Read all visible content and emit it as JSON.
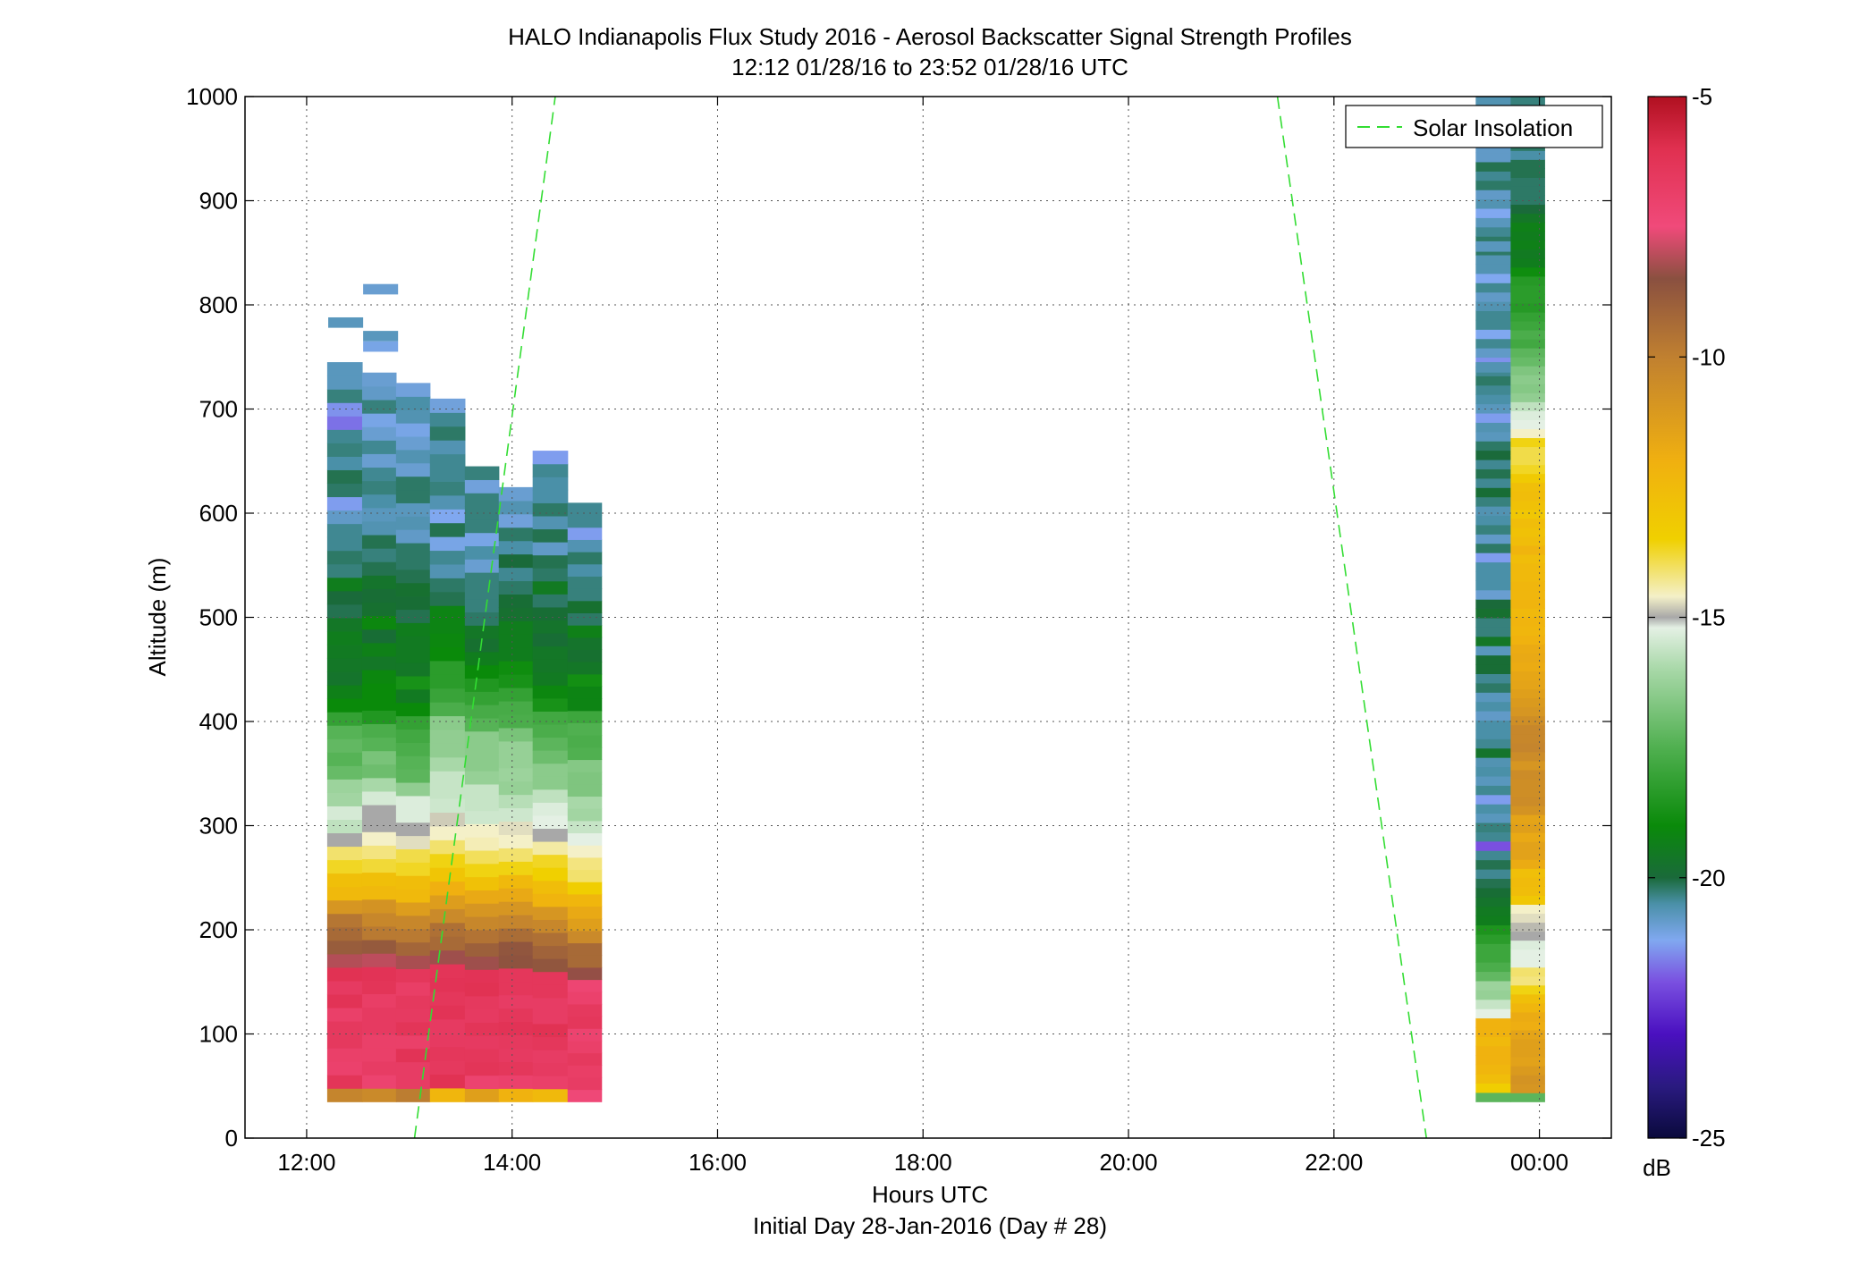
{
  "chart_data": {
    "type": "heatmap",
    "title": "HALO Indianapolis Flux Study 2016 - Aerosol Backscatter Signal Strength Profiles",
    "subtitle": "12:12 01/28/16 to 23:52 01/28/16  UTC",
    "xlabel": "Hours UTC",
    "xlabel2": "Initial Day 28-Jan-2016 (Day # 28)",
    "ylabel": "Altitude (m)",
    "xlim": [
      11.4,
      24.7
    ],
    "ylim": [
      0,
      1000
    ],
    "x_ticks": [
      12,
      14,
      16,
      18,
      20,
      22,
      24
    ],
    "x_tick_labels": [
      "12:00",
      "14:00",
      "16:00",
      "18:00",
      "20:00",
      "22:00",
      "00:00"
    ],
    "y_ticks": [
      0,
      100,
      200,
      300,
      400,
      500,
      600,
      700,
      800,
      900,
      1000
    ],
    "y_tick_labels": [
      "0",
      "100",
      "200",
      "300",
      "400",
      "500",
      "600",
      "700",
      "800",
      "900",
      "1000"
    ],
    "grid": true,
    "legend": {
      "placement": "top-right",
      "entries": [
        {
          "label": "Solar Insolation",
          "color": "#33dd33",
          "style": "dashed"
        }
      ]
    },
    "colorbar": {
      "range": [
        -25,
        -5
      ],
      "ticks": [
        -5,
        -10,
        -15,
        -20,
        -25
      ],
      "tick_labels": [
        "-5",
        "-10",
        "-15",
        "-20",
        "-25"
      ],
      "unit": "dB",
      "stops": [
        {
          "value": -25,
          "color": "#0a0a3c"
        },
        {
          "value": -24,
          "color": "#2a1a80"
        },
        {
          "value": -23,
          "color": "#4a10c0"
        },
        {
          "value": -22,
          "color": "#7a50e0"
        },
        {
          "value": -21.2,
          "color": "#80a8f0"
        },
        {
          "value": -20.5,
          "color": "#4a90a8"
        },
        {
          "value": -20,
          "color": "#1a6a3a"
        },
        {
          "value": -19,
          "color": "#0a8a0a"
        },
        {
          "value": -17.5,
          "color": "#50b050"
        },
        {
          "value": -16,
          "color": "#a8d8a8"
        },
        {
          "value": -15.2,
          "color": "#e4f0e4"
        },
        {
          "value": -15,
          "color": "#a8a8a8"
        },
        {
          "value": -14.6,
          "color": "#f4f0c8"
        },
        {
          "value": -13.5,
          "color": "#f0d000"
        },
        {
          "value": -12,
          "color": "#f0b010"
        },
        {
          "value": -10,
          "color": "#c08030"
        },
        {
          "value": -8.5,
          "color": "#8a5040"
        },
        {
          "value": -7.5,
          "color": "#f04a7a"
        },
        {
          "value": -6,
          "color": "#e03050"
        },
        {
          "value": -5,
          "color": "#b01020"
        }
      ]
    },
    "solar_insolation_lines": [
      {
        "x": [
          13.05,
          14.42
        ],
        "y": [
          0,
          1000
        ]
      },
      {
        "x": [
          21.45,
          22.9
        ],
        "y": [
          1000,
          0
        ]
      }
    ],
    "profiles": [
      {
        "t0": 12.2,
        "t1": 12.54,
        "bottom": 35,
        "top": 745,
        "values": [
          -10.2,
          -6.3,
          -7,
          -6.9,
          -6.5,
          -6.5,
          -6.9,
          -6.2,
          -6.6,
          -6.1,
          -8.1,
          -8.9,
          -9.3,
          -9.7,
          -10.9,
          -12.4,
          -12.7,
          -13.7,
          -14.1,
          -15,
          -15.7,
          -15.4,
          -16.1,
          -16.2,
          -17.1,
          -17.4,
          -17.2,
          -17.4,
          -18.1,
          -19,
          -19.3,
          -19.7,
          -19.6,
          -19.5,
          -19.4,
          -19.6,
          -20.1,
          -20,
          -19.4,
          -20.3,
          -20.2,
          -20.4,
          -20.4,
          -20.8,
          -21.3,
          -20.2,
          -20.1,
          -20.5,
          -20.3,
          -20.4,
          -21.7,
          -21.4,
          -20.3,
          -20.7,
          -20.7
        ]
      },
      {
        "t0": 12.54,
        "t1": 12.87,
        "bottom": 35,
        "top": 735,
        "values": [
          -10.4,
          -7.1,
          -6.7,
          -6.9,
          -6.9,
          -6.6,
          -6.6,
          -6.8,
          -6.3,
          -6.2,
          -8,
          -8.8,
          -9.8,
          -10.3,
          -10.8,
          -12.4,
          -12.7,
          -13.8,
          -14.2,
          -14.6,
          -15,
          -15,
          -15.4,
          -16,
          -17,
          -16.8,
          -17.4,
          -17.6,
          -18.5,
          -19,
          -19,
          -19.1,
          -19.6,
          -19.3,
          -19.9,
          -19.1,
          -19.8,
          -19.9,
          -19.7,
          -20.1,
          -20.3,
          -20.1,
          -20.6,
          -20.7,
          -20.5,
          -20.3,
          -20.4,
          -20.9,
          -20.4,
          -20.9,
          -21.1,
          -20.3,
          -20.8,
          -20.9
        ]
      },
      {
        "t0": 12.87,
        "t1": 13.2,
        "bottom": 35,
        "top": 725,
        "values": [
          -9.9,
          -6.7,
          -6.7,
          -6.2,
          -6.9,
          -6.3,
          -6.6,
          -6.5,
          -6.8,
          -6.4,
          -8.2,
          -9.2,
          -9.8,
          -10.3,
          -11.2,
          -12.4,
          -12.6,
          -13.7,
          -13.9,
          -14.7,
          -15,
          -15.3,
          -15.3,
          -16.4,
          -17.3,
          -17.4,
          -17.6,
          -17.8,
          -18.1,
          -19,
          -19.5,
          -18.7,
          -19.6,
          -19.5,
          -19.5,
          -19.4,
          -20.1,
          -19.9,
          -19.8,
          -20.1,
          -20.2,
          -20.2,
          -20.8,
          -20.6,
          -20.7,
          -20.2,
          -20.2,
          -20.9,
          -20.6,
          -20.9,
          -21.1,
          -20.6,
          -20.5,
          -21
        ]
      },
      {
        "t0": 13.2,
        "t1": 13.54,
        "bottom": 35,
        "top": 710,
        "values": [
          -12.3,
          -6.1,
          -6.5,
          -6.4,
          -6.6,
          -6.6,
          -6.2,
          -6.4,
          -6.2,
          -6.3,
          -8.3,
          -9.3,
          -9.5,
          -10.4,
          -11.2,
          -12,
          -13,
          -13.6,
          -14.1,
          -14.6,
          -14.8,
          -15.5,
          -15.6,
          -15.6,
          -16,
          -16.4,
          -16.4,
          -16.5,
          -17.6,
          -18,
          -18.3,
          -18.3,
          -19,
          -19.1,
          -19.2,
          -19.2,
          -20.1,
          -20.2,
          -20.6,
          -20.4,
          -21.1,
          -20.1,
          -21.2,
          -20.6,
          -20.3,
          -20.4,
          -20.4,
          -20.6,
          -20.2,
          -20.4,
          -21
        ]
      },
      {
        "t0": 13.54,
        "t1": 13.87,
        "bottom": 35,
        "top": 645,
        "values": [
          -11.3,
          -7.1,
          -6.3,
          -6.4,
          -6.6,
          -6.3,
          -6.6,
          -6.5,
          -6.1,
          -6.2,
          -8.3,
          -9,
          -9.6,
          -10.3,
          -10.9,
          -11.7,
          -12.8,
          -13.6,
          -14,
          -14.5,
          -14.6,
          -15.5,
          -15.6,
          -15.6,
          -16.3,
          -16.5,
          -16.5,
          -16.5,
          -17.4,
          -17.7,
          -18.1,
          -18.5,
          -19,
          -19.4,
          -19.8,
          -19.6,
          -20.2,
          -20.3,
          -20.3,
          -20.3,
          -20.9,
          -20.5,
          -21.1,
          -20.3,
          -20.3,
          -20.3,
          -21,
          -20.3
        ]
      },
      {
        "t0": 13.87,
        "t1": 14.2,
        "bottom": 35,
        "top": 625,
        "values": [
          -12.1,
          -7,
          -6.4,
          -6.6,
          -6.5,
          -6.2,
          -6.4,
          -6.7,
          -6.4,
          -6.4,
          -8.6,
          -8.7,
          -9.4,
          -10.2,
          -10.9,
          -11.7,
          -12.4,
          -13.6,
          -14.1,
          -14.6,
          -14.7,
          -15.5,
          -15.8,
          -16.3,
          -16.2,
          -16.3,
          -16.3,
          -16.8,
          -17.6,
          -17.7,
          -18.1,
          -18.7,
          -18.9,
          -19.4,
          -19.4,
          -19.4,
          -19.8,
          -19.9,
          -20.2,
          -20.4,
          -20,
          -20.5,
          -20.2,
          -21,
          -20.6,
          -20.9
        ]
      },
      {
        "t0": 14.2,
        "t1": 14.54,
        "bottom": 35,
        "top": 660,
        "values": [
          -12.4,
          -6.9,
          -6.6,
          -6.7,
          -6.4,
          -6.1,
          -6.7,
          -6.7,
          -6.4,
          -6.4,
          -8.7,
          -9.1,
          -9.5,
          -10.3,
          -10.9,
          -12.2,
          -12.6,
          -13.5,
          -13.7,
          -14.4,
          -15,
          -15.2,
          -15.3,
          -15.7,
          -16.5,
          -16.5,
          -17,
          -17.3,
          -17.6,
          -17.8,
          -18.7,
          -19.1,
          -19.5,
          -19.6,
          -19.6,
          -19.9,
          -19.7,
          -19.9,
          -20.2,
          -19.5,
          -20.2,
          -20.1,
          -20.8,
          -20.1,
          -20.6,
          -20.2,
          -20.5,
          -20.5,
          -20.4,
          -21.3
        ]
      },
      {
        "t0": 14.54,
        "t1": 14.87,
        "bottom": 35,
        "top": 610,
        "values": [
          -7.4,
          -6.7,
          -6.8,
          -6.5,
          -6.9,
          -7.1,
          -6.4,
          -6.5,
          -7,
          -7.2,
          -8.4,
          -9.3,
          -9.3,
          -10.4,
          -11.3,
          -11.7,
          -12.3,
          -13.4,
          -14.1,
          -14.2,
          -14.6,
          -15.2,
          -15.6,
          -16.1,
          -16,
          -16.7,
          -16.7,
          -16.6,
          -17.5,
          -17.6,
          -17.5,
          -17.9,
          -19.2,
          -19.2,
          -18.8,
          -19.6,
          -19.8,
          -19.7,
          -19.3,
          -20.2,
          -19.8,
          -20.3,
          -20.3,
          -20.5,
          -20.2,
          -20.6,
          -21.3,
          -20.4,
          -20.4
        ]
      },
      {
        "t0": 23.38,
        "t1": 23.72,
        "bottom": 35,
        "top": 1000,
        "values": [
          -17.3,
          -13.4,
          -12.6,
          -12.3,
          -12.1,
          -12.1,
          -12.4,
          -12.1,
          -12.1,
          -15.2,
          -15.6,
          -16.3,
          -16.2,
          -17.2,
          -17.6,
          -17.9,
          -17.9,
          -18.3,
          -18.6,
          -19.4,
          -19.5,
          -19.7,
          -19.9,
          -20.1,
          -20.4,
          -20.1,
          -20.4,
          -22,
          -20.4,
          -20.3,
          -20.7,
          -20.5,
          -21.3,
          -20.4,
          -20.7,
          -20.5,
          -20.6,
          -19.7,
          -20.4,
          -20.5,
          -20.5,
          -20.8,
          -20.5,
          -20.7,
          -20.2,
          -20.4,
          -19.9,
          -19.9,
          -20.7,
          -19.6,
          -20.3,
          -20.3,
          -19.8,
          -20,
          -20.9,
          -20.5,
          -20.5,
          -20.5,
          -21.3,
          -20.2,
          -20.8,
          -20.3,
          -20.5,
          -20.6,
          -20.3,
          -19.9,
          -20.4,
          -20.1,
          -20.4,
          -20,
          -20.2,
          -20.7,
          -20.6,
          -21.3,
          -20.7,
          -20.5,
          -20.4,
          -20.2,
          -20.4,
          -21.4,
          -20.8,
          -20.4,
          -21.2,
          -20.4,
          -20.4,
          -20.6,
          -20.8,
          -20.4,
          -21.2,
          -20.6,
          -20.6,
          -20.2,
          -20.2,
          -20.4,
          -20.7,
          -21.2,
          -20.6,
          -20.8,
          -20.2,
          -20.4,
          -20.1,
          -20.8,
          -20.8,
          -20.5,
          -20.3,
          -20.7,
          -20.9,
          -20.6
        ]
      },
      {
        "t0": 23.72,
        "t1": 24.05,
        "bottom": 35,
        "top": 1000,
        "values": [
          -17.3,
          -10.9,
          -10.8,
          -11.1,
          -11.4,
          -11.3,
          -11.3,
          -11.5,
          -11.9,
          -11.8,
          -12.3,
          -12.7,
          -13.6,
          -14.2,
          -14.1,
          -15.2,
          -15.2,
          -15.3,
          -15,
          -14.9,
          -14.7,
          -14.6,
          -13.1,
          -12.6,
          -12.5,
          -12.7,
          -11.8,
          -11.4,
          -11.4,
          -11.7,
          -11.3,
          -11.5,
          -10.8,
          -10.5,
          -10.6,
          -10.6,
          -10.5,
          -10.9,
          -10.5,
          -10.2,
          -10.3,
          -10.3,
          -10.6,
          -10.9,
          -11.1,
          -11.3,
          -11.5,
          -11.6,
          -11.8,
          -11.7,
          -11.8,
          -12.1,
          -12.3,
          -12.2,
          -12.4,
          -12.2,
          -12.3,
          -12.3,
          -12.4,
          -12.4,
          -12.6,
          -12.2,
          -12.6,
          -12.8,
          -12.6,
          -13.1,
          -12.8,
          -12.6,
          -12.7,
          -13.2,
          -13.7,
          -13.9,
          -13.9,
          -13.6,
          -14.6,
          -15.2,
          -15.3,
          -15.7,
          -16.4,
          -16.6,
          -16.5,
          -16.7,
          -17.1,
          -17.3,
          -17.8,
          -17.6,
          -17.9,
          -18.1,
          -18.4,
          -18.3,
          -18.3,
          -18.4,
          -18.9,
          -19.4,
          -19.5,
          -19.3,
          -19.4,
          -19.3,
          -19.6,
          -20,
          -20.2,
          -20.2,
          -20.2,
          -20.1,
          -20.1,
          -20.5,
          -20.2,
          -20.2,
          -20.3,
          -19.9,
          -20.4,
          -20.3
        ]
      }
    ],
    "sparse_cells": [
      {
        "x": 12.38,
        "y": 783,
        "v": -20.7
      },
      {
        "x": 12.72,
        "y": 815,
        "v": -20.9
      },
      {
        "x": 12.72,
        "y": 770,
        "v": -20.7
      },
      {
        "x": 12.72,
        "y": 760,
        "v": -21.1
      },
      {
        "x": 23.55,
        "y": 740,
        "v": -20.6
      },
      {
        "x": 23.55,
        "y": 856,
        "v": -20.7
      }
    ]
  }
}
